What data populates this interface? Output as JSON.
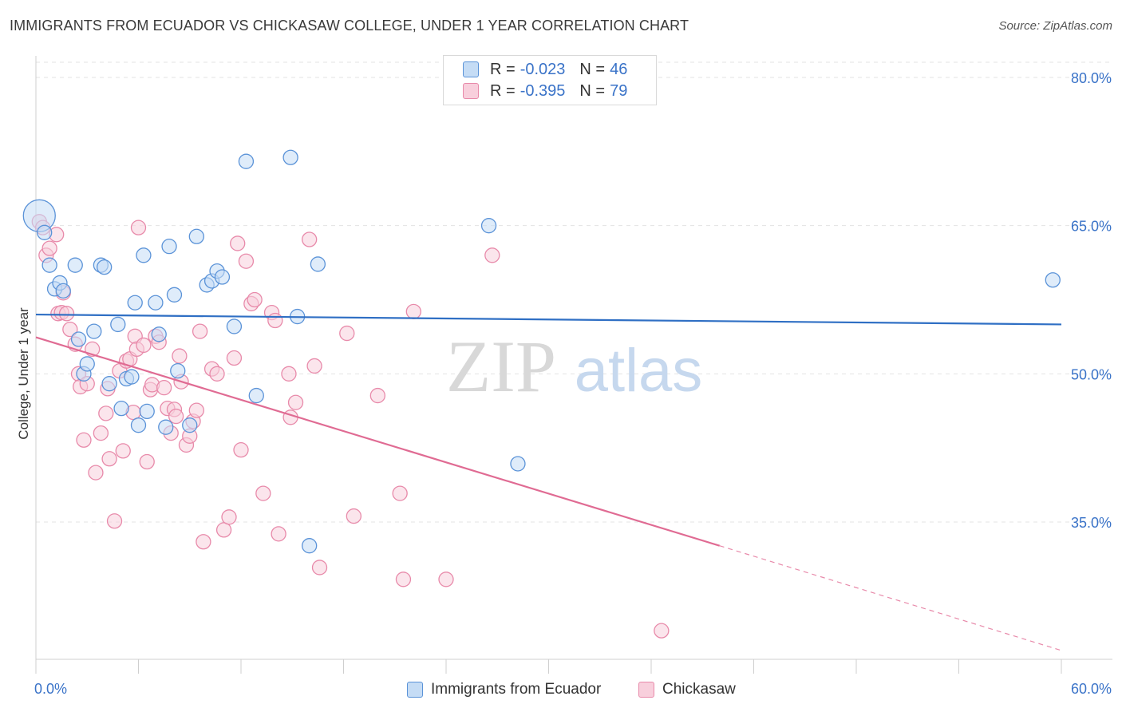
{
  "title": "IMMIGRANTS FROM ECUADOR VS CHICKASAW COLLEGE, UNDER 1 YEAR CORRELATION CHART",
  "source": "Source: ZipAtlas.com",
  "watermark": {
    "zip": "ZIP",
    "atlas": "atlas"
  },
  "legend": {
    "items": [
      {
        "r_label": "R =",
        "r_value": "-0.023",
        "n_label": "N =",
        "n_value": "46",
        "color": "#5b93d8",
        "fill": "#c5dcf5"
      },
      {
        "r_label": "R =",
        "r_value": "-0.395",
        "n_label": "N =",
        "n_value": "79",
        "color": "#e88aaa",
        "fill": "#f8cfdc"
      }
    ]
  },
  "bottom_legend": [
    "Immigrants from Ecuador",
    "Chickasaw"
  ],
  "chart_data": {
    "type": "scatter",
    "title": "IMMIGRANTS FROM ECUADOR VS CHICKASAW COLLEGE, UNDER 1 YEAR CORRELATION CHART",
    "xlabel": "",
    "ylabel": "College, Under 1 year",
    "xlim": [
      0,
      60
    ],
    "ylim": [
      20,
      83
    ],
    "x_tick_labels": [
      "0.0%",
      "60.0%"
    ],
    "y_tick_labels": [
      "80.0%",
      "65.0%",
      "50.0%",
      "35.0%"
    ],
    "y_ticks": [
      80,
      65,
      50,
      35
    ],
    "grid": true,
    "legend_position": "top-center",
    "series": [
      {
        "name": "Immigrants from Ecuador",
        "color": "#5b93d8",
        "fill": "#c5dcf5",
        "points": [
          [
            0.2,
            66.0
          ],
          [
            0.5,
            64.3
          ],
          [
            0.8,
            61.0
          ],
          [
            1.1,
            58.6
          ],
          [
            1.4,
            59.2
          ],
          [
            1.6,
            58.4
          ],
          [
            2.3,
            61.0
          ],
          [
            2.5,
            53.5
          ],
          [
            2.8,
            50.0
          ],
          [
            3.0,
            51.0
          ],
          [
            3.4,
            54.3
          ],
          [
            3.8,
            61.0
          ],
          [
            4.0,
            60.8
          ],
          [
            4.3,
            49.0
          ],
          [
            4.8,
            55.0
          ],
          [
            5.0,
            46.5
          ],
          [
            5.3,
            49.5
          ],
          [
            5.6,
            49.7
          ],
          [
            5.8,
            57.2
          ],
          [
            6.0,
            44.8
          ],
          [
            6.3,
            62.0
          ],
          [
            6.5,
            46.2
          ],
          [
            7.0,
            57.2
          ],
          [
            7.2,
            54.0
          ],
          [
            7.6,
            44.6
          ],
          [
            7.8,
            62.9
          ],
          [
            8.1,
            58.0
          ],
          [
            8.3,
            50.3
          ],
          [
            9.0,
            44.8
          ],
          [
            9.4,
            63.9
          ],
          [
            10.0,
            59.0
          ],
          [
            10.3,
            59.4
          ],
          [
            10.6,
            60.4
          ],
          [
            10.9,
            59.8
          ],
          [
            11.6,
            54.8
          ],
          [
            12.3,
            71.5
          ],
          [
            12.9,
            47.8
          ],
          [
            14.9,
            71.9
          ],
          [
            15.3,
            55.8
          ],
          [
            16.0,
            32.6
          ],
          [
            16.5,
            61.1
          ],
          [
            26.5,
            65.0
          ],
          [
            28.2,
            40.9
          ],
          [
            59.5,
            59.5
          ]
        ],
        "trend": {
          "x": [
            0,
            60
          ],
          "y": [
            56.0,
            55.0
          ]
        }
      },
      {
        "name": "Chickasaw",
        "color": "#e88aaa",
        "fill": "#f8cfdc",
        "points": [
          [
            0.2,
            65.4
          ],
          [
            0.4,
            64.8
          ],
          [
            0.6,
            62.0
          ],
          [
            0.8,
            62.7
          ],
          [
            1.2,
            64.1
          ],
          [
            1.3,
            56.1
          ],
          [
            1.5,
            56.2
          ],
          [
            1.6,
            58.2
          ],
          [
            1.8,
            56.1
          ],
          [
            2.0,
            54.5
          ],
          [
            2.3,
            53.0
          ],
          [
            2.5,
            50.0
          ],
          [
            2.6,
            48.7
          ],
          [
            2.8,
            43.3
          ],
          [
            3.0,
            49.0
          ],
          [
            3.3,
            52.5
          ],
          [
            3.5,
            40.0
          ],
          [
            3.8,
            44.0
          ],
          [
            4.1,
            46.0
          ],
          [
            4.2,
            48.5
          ],
          [
            4.3,
            41.4
          ],
          [
            4.6,
            35.1
          ],
          [
            4.9,
            50.3
          ],
          [
            5.1,
            42.2
          ],
          [
            5.3,
            51.3
          ],
          [
            5.5,
            51.5
          ],
          [
            5.7,
            46.1
          ],
          [
            5.8,
            53.8
          ],
          [
            5.9,
            52.5
          ],
          [
            6.0,
            64.8
          ],
          [
            6.3,
            52.9
          ],
          [
            6.5,
            41.1
          ],
          [
            6.7,
            48.4
          ],
          [
            6.8,
            48.9
          ],
          [
            7.0,
            53.8
          ],
          [
            7.2,
            53.2
          ],
          [
            7.5,
            48.6
          ],
          [
            7.7,
            46.5
          ],
          [
            7.9,
            44.0
          ],
          [
            8.1,
            46.4
          ],
          [
            8.2,
            45.7
          ],
          [
            8.4,
            51.8
          ],
          [
            8.5,
            49.2
          ],
          [
            8.8,
            42.8
          ],
          [
            9.0,
            43.7
          ],
          [
            9.2,
            45.2
          ],
          [
            9.4,
            46.3
          ],
          [
            9.6,
            54.3
          ],
          [
            9.8,
            33.0
          ],
          [
            10.3,
            50.5
          ],
          [
            10.6,
            50.0
          ],
          [
            11.0,
            34.2
          ],
          [
            11.3,
            35.5
          ],
          [
            11.6,
            51.6
          ],
          [
            11.8,
            63.2
          ],
          [
            12.0,
            42.3
          ],
          [
            12.3,
            61.4
          ],
          [
            12.6,
            57.1
          ],
          [
            12.8,
            57.5
          ],
          [
            13.3,
            37.9
          ],
          [
            13.8,
            56.2
          ],
          [
            14.0,
            55.4
          ],
          [
            14.2,
            33.8
          ],
          [
            14.8,
            50.0
          ],
          [
            14.9,
            45.6
          ],
          [
            15.2,
            47.1
          ],
          [
            16.0,
            63.6
          ],
          [
            16.3,
            50.8
          ],
          [
            16.6,
            30.4
          ],
          [
            18.2,
            54.1
          ],
          [
            18.6,
            35.6
          ],
          [
            20.0,
            47.8
          ],
          [
            21.3,
            37.9
          ],
          [
            21.5,
            29.2
          ],
          [
            22.1,
            56.3
          ],
          [
            24.0,
            29.2
          ],
          [
            26.7,
            62.0
          ],
          [
            36.6,
            24.0
          ]
        ],
        "trend": {
          "x": [
            0,
            40
          ],
          "y": [
            53.7,
            32.6
          ]
        },
        "trend_dashed": {
          "x": [
            40,
            60
          ],
          "y": [
            32.6,
            22.0
          ]
        }
      }
    ]
  }
}
